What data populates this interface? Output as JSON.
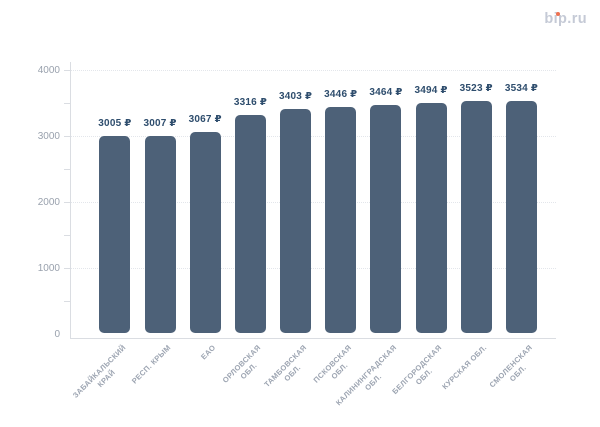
{
  "brand": {
    "name": "bip.ru",
    "text_color": "#c5cad6",
    "accent_dot_color": "#ee7150"
  },
  "chart_data": {
    "type": "bar",
    "title": "",
    "xlabel": "",
    "ylabel": "",
    "currency_suffix": "₽",
    "categories": [
      "ЗАБАЙКАЛЬСКИЙ КРАЙ",
      "РЕСП. КРЫМ",
      "ЕАО",
      "ОРЛОВСКАЯ ОБЛ.",
      "ТАМБОВСКАЯ ОБЛ.",
      "ПСКОВСКАЯ ОБЛ.",
      "КАЛИНИНГРАДСКАЯ ОБЛ.",
      "БЕЛГОРОДСКАЯ ОБЛ.",
      "КУРСКАЯ ОБЛ.",
      "СМОЛЕНСКАЯ ОБЛ."
    ],
    "category_lines": [
      [
        "ЗАБАЙКАЛЬСКИЙ",
        "КРАЙ"
      ],
      [
        "РЕСП. КРЫМ"
      ],
      [
        "ЕАО"
      ],
      [
        "ОРЛОВСКАЯ",
        "ОБЛ."
      ],
      [
        "ТАМБОВСКАЯ",
        "ОБЛ."
      ],
      [
        "ПСКОВСКАЯ",
        "ОБЛ."
      ],
      [
        "КАЛИНИНГРАДСКАЯ",
        "ОБЛ."
      ],
      [
        "БЕЛГОРОДСКАЯ",
        "ОБЛ."
      ],
      [
        "КУРСКАЯ ОБЛ."
      ],
      [
        "СМОЛЕНСКАЯ",
        "ОБЛ."
      ]
    ],
    "values": [
      3005,
      3007,
      3067,
      3316,
      3403,
      3446,
      3464,
      3494,
      3523,
      3534
    ],
    "value_labels": [
      "3005 ₽",
      "3007 ₽",
      "3067 ₽",
      "3316 ₽",
      "3403 ₽",
      "3446 ₽",
      "3464 ₽",
      "3494 ₽",
      "3523 ₽",
      "3534 ₽"
    ],
    "ylim": [
      0,
      4000
    ],
    "y_tick_labels": [
      "0",
      "1000",
      "2000",
      "3000",
      "4000"
    ],
    "y_tick_values": [
      0,
      1000,
      2000,
      3000,
      4000
    ],
    "y_minor_tick_step": 500,
    "grid": "horizontal-dotted",
    "legend": "none",
    "bar_color": "#4d6178",
    "value_label_color": "#2e4d6d",
    "axis_label_color": "#99a1ad",
    "grid_color": "#e3e6eb",
    "axis_line_color": "#dadde2"
  }
}
